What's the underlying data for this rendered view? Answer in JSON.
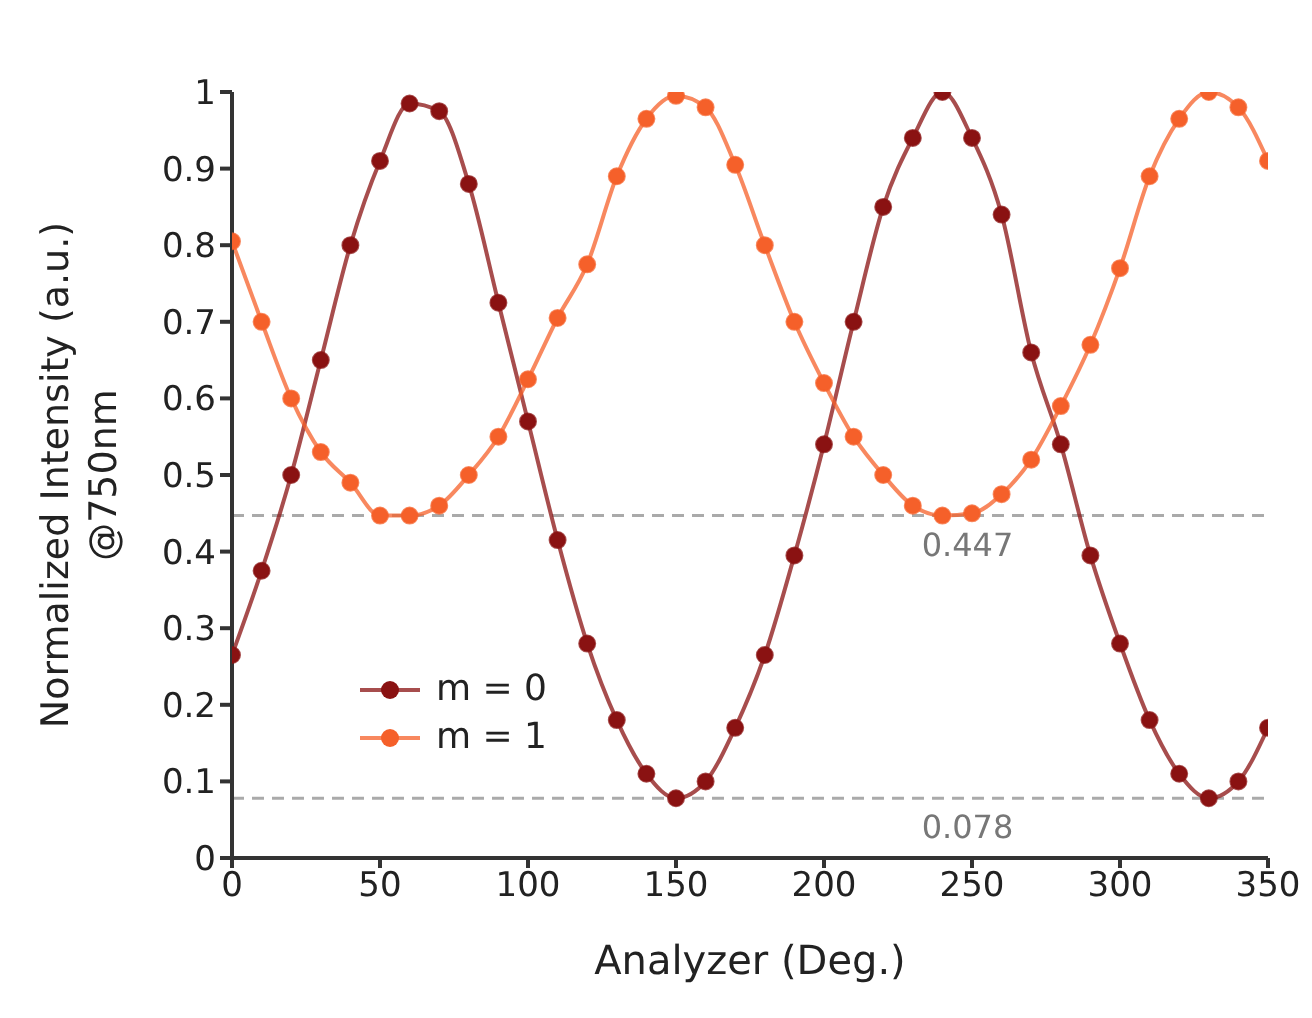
{
  "chart_data": {
    "type": "line",
    "xlabel": "Analyzer (Deg.)",
    "ylabel": "Normalized Intensity  (a.u.)\n@750nm",
    "x": [
      0,
      10,
      20,
      30,
      40,
      50,
      60,
      70,
      80,
      90,
      100,
      110,
      120,
      130,
      140,
      150,
      160,
      170,
      180,
      190,
      200,
      210,
      220,
      230,
      240,
      250,
      260,
      270,
      280,
      290,
      300,
      310,
      320,
      330,
      340,
      350
    ],
    "series": [
      {
        "name": "m = 0",
        "color": "#8a1212",
        "values": [
          0.265,
          0.375,
          0.5,
          0.65,
          0.8,
          0.91,
          0.985,
          0.975,
          0.88,
          0.725,
          0.57,
          0.415,
          0.28,
          0.18,
          0.11,
          0.078,
          0.1,
          0.17,
          0.265,
          0.395,
          0.54,
          0.7,
          0.85,
          0.94,
          1.0,
          0.94,
          0.84,
          0.66,
          0.54,
          0.395,
          0.28,
          0.18,
          0.11,
          0.078,
          0.1,
          0.17
        ]
      },
      {
        "name": "m = 1",
        "color": "#f5602a",
        "values": [
          0.805,
          0.7,
          0.6,
          0.53,
          0.49,
          0.447,
          0.447,
          0.46,
          0.5,
          0.55,
          0.625,
          0.705,
          0.775,
          0.89,
          0.965,
          0.995,
          0.98,
          0.905,
          0.8,
          0.7,
          0.62,
          0.55,
          0.5,
          0.46,
          0.447,
          0.45,
          0.475,
          0.52,
          0.59,
          0.67,
          0.77,
          0.89,
          0.965,
          1.0,
          0.98,
          0.91
        ]
      }
    ],
    "xlim": [
      0,
      350
    ],
    "xticks": [
      0,
      50,
      100,
      150,
      200,
      250,
      300,
      350
    ],
    "ylim": [
      0,
      1
    ],
    "yticks": [
      0,
      0.1,
      0.2,
      0.3,
      0.4,
      0.5,
      0.6,
      0.7,
      0.8,
      0.9,
      1
    ],
    "ref_lines": [
      {
        "axis": "y",
        "value": 0.447,
        "label": "0.447",
        "color": "#aaaaaa",
        "line_style": "dashed"
      },
      {
        "axis": "y",
        "value": 0.078,
        "label": "0.078",
        "color": "#aaaaaa",
        "line_style": "dashed"
      }
    ],
    "grid": false,
    "legend": "bottom left",
    "marker": "circle",
    "line_style": "solid"
  }
}
